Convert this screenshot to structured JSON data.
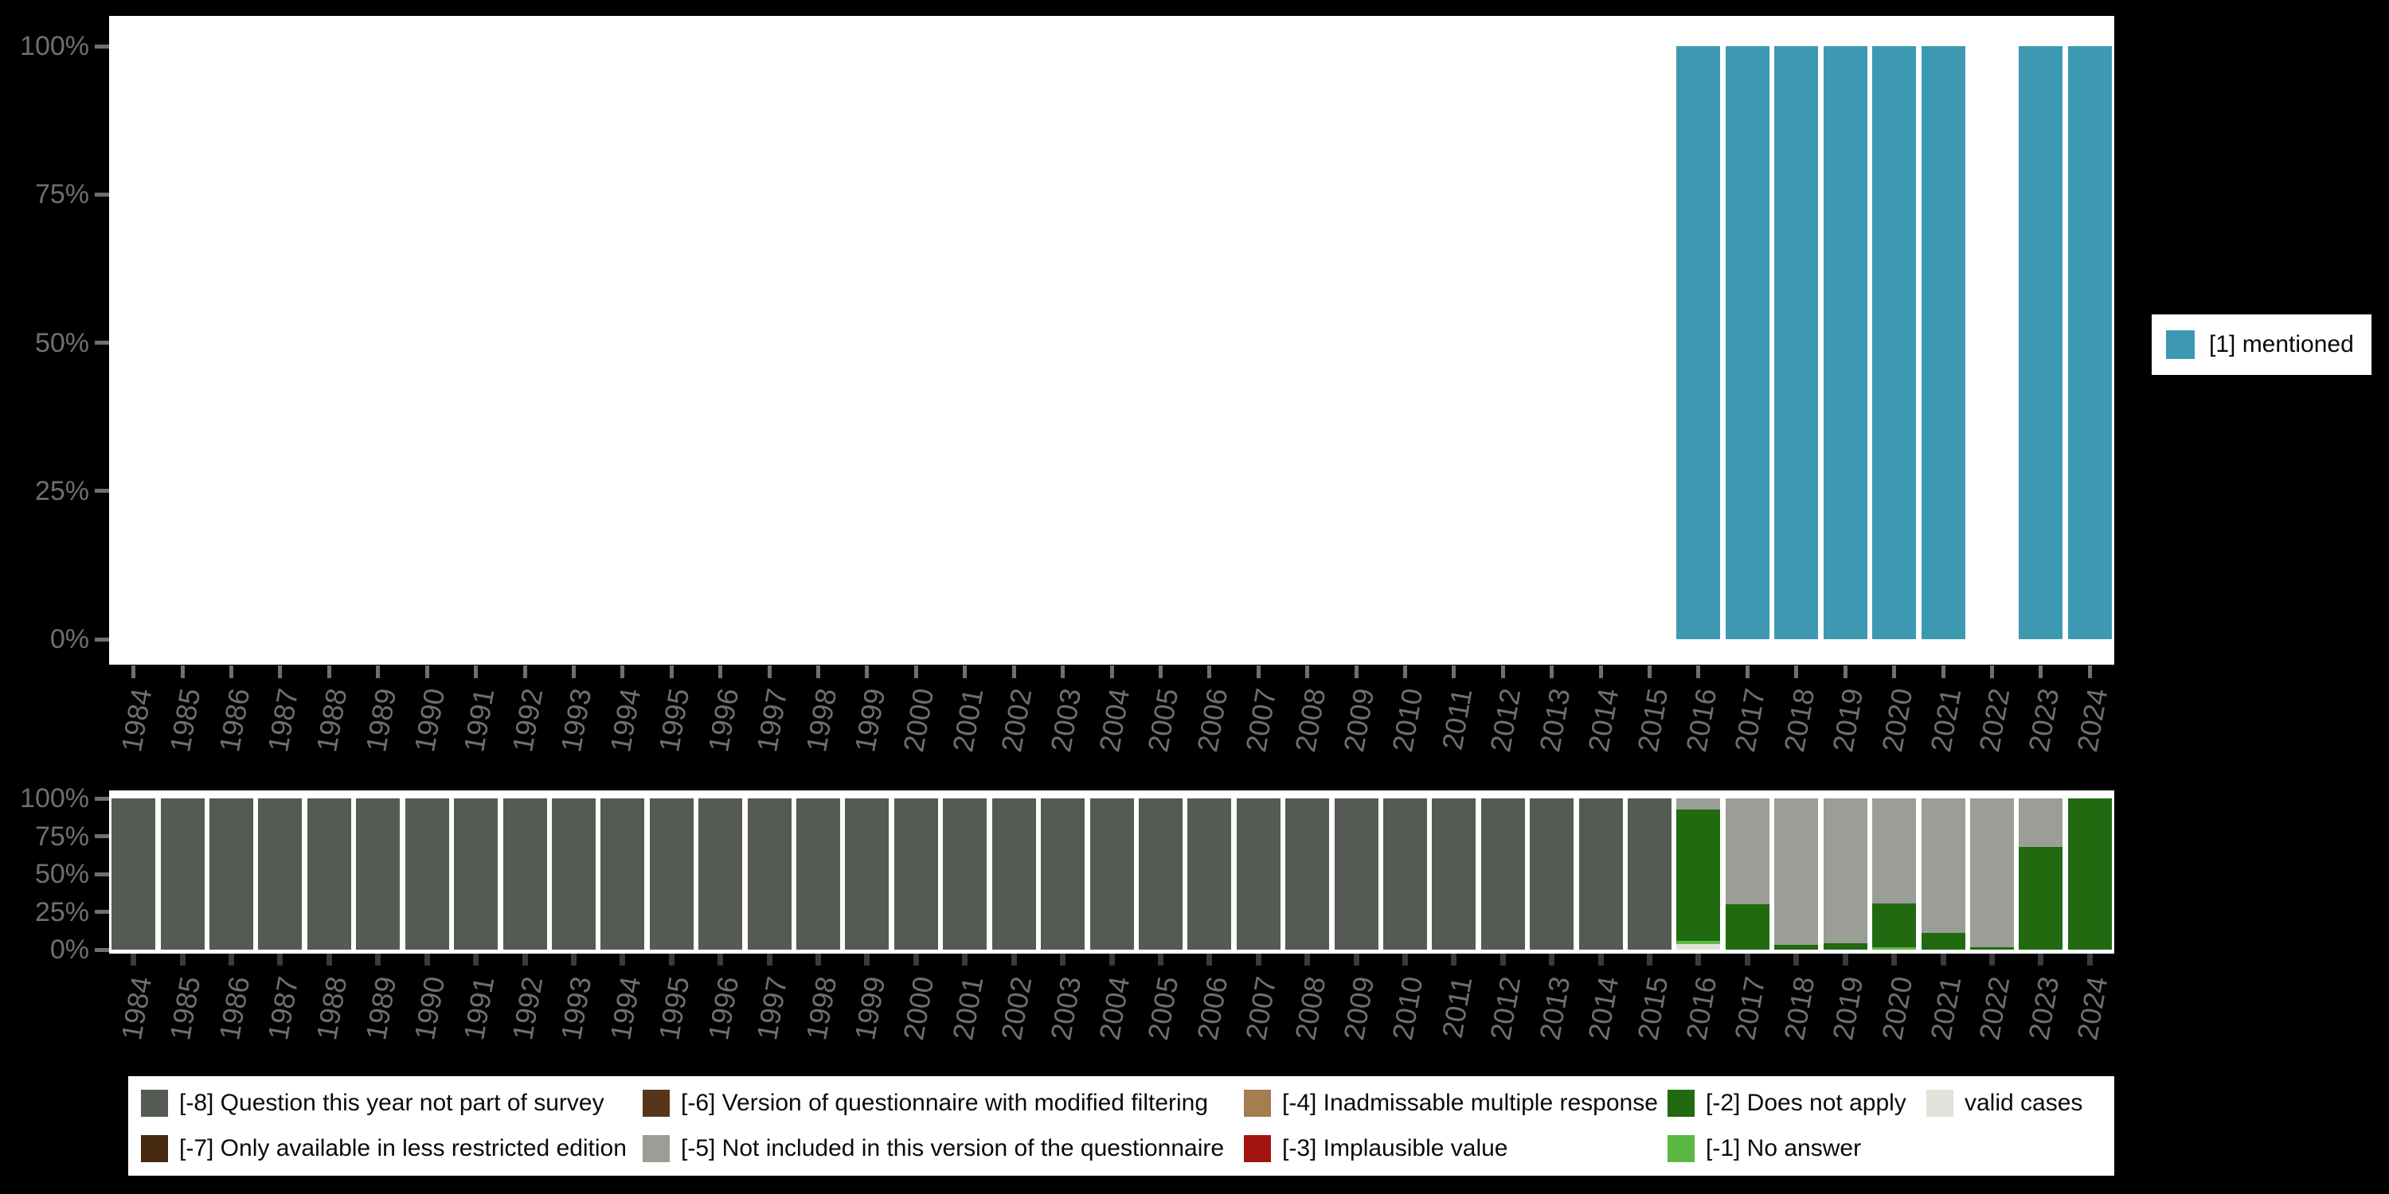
{
  "colors": {
    "background": "#000000",
    "plot_background": "#ffffff",
    "axis_text": "#6f6f6f",
    "top_bar": "#3d99b2"
  },
  "chart_data": [
    {
      "id": "top-mentioned-by-year",
      "type": "bar",
      "stacked": true,
      "title": "",
      "xlabel": "",
      "ylabel": "",
      "grid": false,
      "legend_position": "right",
      "ylim": [
        0,
        100
      ],
      "y_tick_labels": [
        "100%",
        "75%",
        "50%",
        "25%",
        "0%"
      ],
      "categories": [
        "1984",
        "1985",
        "1986",
        "1987",
        "1988",
        "1989",
        "1990",
        "1991",
        "1992",
        "1993",
        "1994",
        "1995",
        "1996",
        "1997",
        "1998",
        "1999",
        "2000",
        "2001",
        "2002",
        "2003",
        "2004",
        "2005",
        "2006",
        "2007",
        "2008",
        "2009",
        "2010",
        "2011",
        "2012",
        "2013",
        "2014",
        "2015",
        "2016",
        "2017",
        "2018",
        "2019",
        "2020",
        "2021",
        "2022",
        "2023",
        "2024"
      ],
      "series": [
        {
          "name": "[1] mentioned",
          "color": "#3d99b2",
          "values": [
            0,
            0,
            0,
            0,
            0,
            0,
            0,
            0,
            0,
            0,
            0,
            0,
            0,
            0,
            0,
            0,
            0,
            0,
            0,
            0,
            0,
            0,
            0,
            0,
            0,
            0,
            0,
            0,
            0,
            0,
            0,
            0,
            100,
            100,
            100,
            100,
            100,
            100,
            0,
            100,
            100
          ]
        }
      ]
    },
    {
      "id": "bottom-missing-values-by-year",
      "type": "bar",
      "stacked": true,
      "title": "",
      "xlabel": "",
      "ylabel": "",
      "grid": false,
      "legend_position": "bottom",
      "ylim": [
        0,
        100
      ],
      "y_tick_labels": [
        "100%",
        "75%",
        "50%",
        "25%",
        "0%"
      ],
      "categories": [
        "1984",
        "1985",
        "1986",
        "1987",
        "1988",
        "1989",
        "1990",
        "1991",
        "1992",
        "1993",
        "1994",
        "1995",
        "1996",
        "1997",
        "1998",
        "1999",
        "2000",
        "2001",
        "2002",
        "2003",
        "2004",
        "2005",
        "2006",
        "2007",
        "2008",
        "2009",
        "2010",
        "2011",
        "2012",
        "2013",
        "2014",
        "2015",
        "2016",
        "2017",
        "2018",
        "2019",
        "2020",
        "2021",
        "2022",
        "2023",
        "2024"
      ],
      "series": [
        {
          "name": "[-8] Question this year not part of survey",
          "color": "#555b54",
          "values": [
            100,
            100,
            100,
            100,
            100,
            100,
            100,
            100,
            100,
            100,
            100,
            100,
            100,
            100,
            100,
            100,
            100,
            100,
            100,
            100,
            100,
            100,
            100,
            100,
            100,
            100,
            100,
            100,
            100,
            100,
            100,
            100,
            0,
            0,
            0,
            0,
            0,
            0,
            0,
            0,
            0
          ]
        },
        {
          "name": "[-5] Not included in this version of the questionnaire",
          "color": "#9a9e96",
          "values": [
            0,
            0,
            0,
            0,
            0,
            0,
            0,
            0,
            0,
            0,
            0,
            0,
            0,
            0,
            0,
            0,
            0,
            0,
            0,
            0,
            0,
            0,
            0,
            0,
            0,
            0,
            0,
            0,
            0,
            0,
            0,
            0,
            7.5,
            70,
            97,
            96,
            69.5,
            89,
            98.5,
            32,
            0
          ]
        },
        {
          "name": "[-2] Does not apply",
          "color": "#216a10",
          "values": [
            0,
            0,
            0,
            0,
            0,
            0,
            0,
            0,
            0,
            0,
            0,
            0,
            0,
            0,
            0,
            0,
            0,
            0,
            0,
            0,
            0,
            0,
            0,
            0,
            0,
            0,
            0,
            0,
            0,
            0,
            0,
            0,
            86.5,
            30,
            3,
            4,
            29,
            11,
            1.5,
            68,
            100
          ]
        },
        {
          "name": "[-1] No answer",
          "color": "#5cb844",
          "values": [
            0,
            0,
            0,
            0,
            0,
            0,
            0,
            0,
            0,
            0,
            0,
            0,
            0,
            0,
            0,
            0,
            0,
            0,
            0,
            0,
            0,
            0,
            0,
            0,
            0,
            0,
            0,
            0,
            0,
            0,
            0,
            0,
            2.5,
            0,
            0,
            0,
            1.5,
            0,
            0,
            0,
            0
          ]
        },
        {
          "name": "valid cases",
          "color": "#dfe3da",
          "values": [
            0,
            0,
            0,
            0,
            0,
            0,
            0,
            0,
            0,
            0,
            0,
            0,
            0,
            0,
            0,
            0,
            0,
            0,
            0,
            0,
            0,
            0,
            0,
            0,
            0,
            0,
            0,
            0,
            0,
            0,
            0,
            0,
            3.5,
            0,
            0,
            0,
            0,
            0,
            0,
            0,
            0
          ]
        }
      ],
      "legend_items": [
        {
          "label": "[-8] Question this year not part of survey",
          "color": "#555b54"
        },
        {
          "label": "[-7] Only available in less restricted edition",
          "color": "#46290f"
        },
        {
          "label": "[-6] Version of questionnaire with modified filtering",
          "color": "#57351a"
        },
        {
          "label": "[-5] Not included in this version of the questionnaire",
          "color": "#9a9e96"
        },
        {
          "label": "[-4] Inadmissable multiple response",
          "color": "#a67c52"
        },
        {
          "label": "[-3] Implausible value",
          "color": "#a31410"
        },
        {
          "label": "[-2] Does not apply",
          "color": "#216a10"
        },
        {
          "label": "[-1] No answer",
          "color": "#5cb844"
        },
        {
          "label": "valid cases",
          "color": "#dfe3da"
        }
      ]
    }
  ]
}
